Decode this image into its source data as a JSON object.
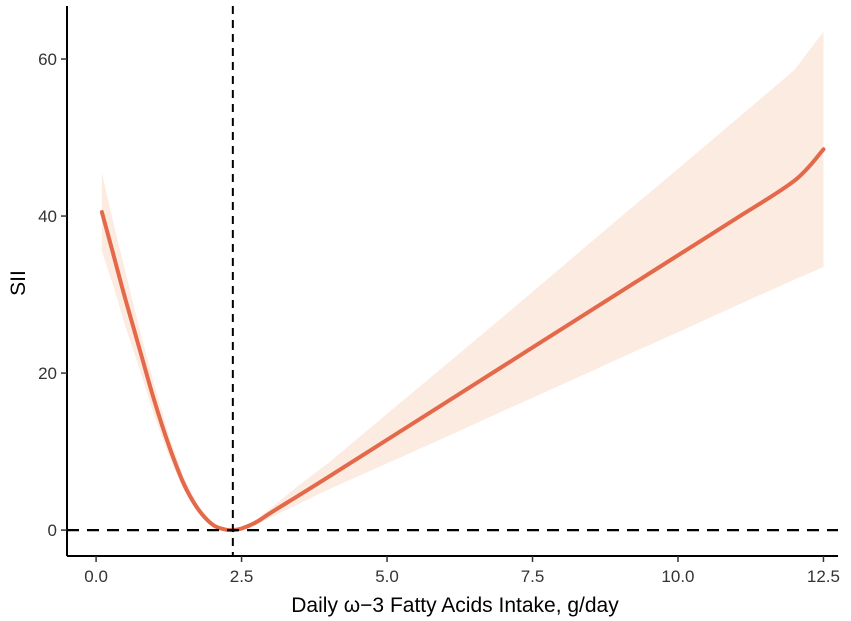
{
  "chart_data": {
    "type": "line",
    "xlabel": "Daily ω−3 Fatty Acids Intake, g/day",
    "ylabel": "SII",
    "xlim": [
      -0.5,
      12.75
    ],
    "ylim": [
      -3.3,
      66.5
    ],
    "x_ticks": [
      0.0,
      2.5,
      5.0,
      7.5,
      10.0,
      12.5
    ],
    "x_tick_labels": [
      "0.0",
      "2.5",
      "5.0",
      "7.5",
      "10.0",
      "12.5"
    ],
    "y_ticks": [
      0,
      20,
      40,
      60
    ],
    "y_tick_labels": [
      "0",
      "20",
      "40",
      "60"
    ],
    "grid": false,
    "reference_lines": [
      {
        "orientation": "vertical",
        "x": 2.35,
        "style": "dashed"
      },
      {
        "orientation": "horizontal",
        "y": 0,
        "style": "dashed"
      }
    ],
    "series": [
      {
        "x": [
          0.1,
          0.3,
          0.5,
          0.75,
          1.0,
          1.25,
          1.5,
          1.75,
          2.0,
          2.2,
          2.35,
          2.5,
          2.75,
          3.0,
          3.5,
          4.0,
          5.0,
          6.0,
          7.0,
          8.0,
          9.0,
          10.0,
          11.0,
          12.0,
          12.5
        ],
        "y": [
          40.5,
          35.0,
          29.5,
          23.0,
          16.5,
          10.8,
          6.0,
          2.7,
          0.7,
          0.1,
          0.0,
          0.2,
          1.0,
          2.2,
          4.5,
          6.8,
          11.5,
          16.2,
          20.9,
          25.6,
          30.3,
          35.0,
          39.7,
          44.5,
          48.5
        ],
        "ci_lower": [
          35.5,
          31.0,
          26.0,
          20.5,
          14.5,
          9.5,
          5.2,
          2.2,
          0.5,
          0.05,
          0.0,
          0.15,
          0.7,
          1.6,
          3.4,
          5.2,
          8.5,
          11.8,
          15.2,
          18.5,
          21.9,
          25.2,
          28.6,
          31.9,
          33.5
        ],
        "ci_upper": [
          45.5,
          39.0,
          33.0,
          25.5,
          18.5,
          12.1,
          6.8,
          3.2,
          0.9,
          0.15,
          0.0,
          0.3,
          1.3,
          2.8,
          5.8,
          8.6,
          14.8,
          21.0,
          27.2,
          33.5,
          39.8,
          46.0,
          52.3,
          58.6,
          63.5
        ]
      }
    ],
    "colors": {
      "line": "#e4694a",
      "ribbon": "#fcebe1",
      "axis": "#000000",
      "reference": "#000000"
    }
  }
}
